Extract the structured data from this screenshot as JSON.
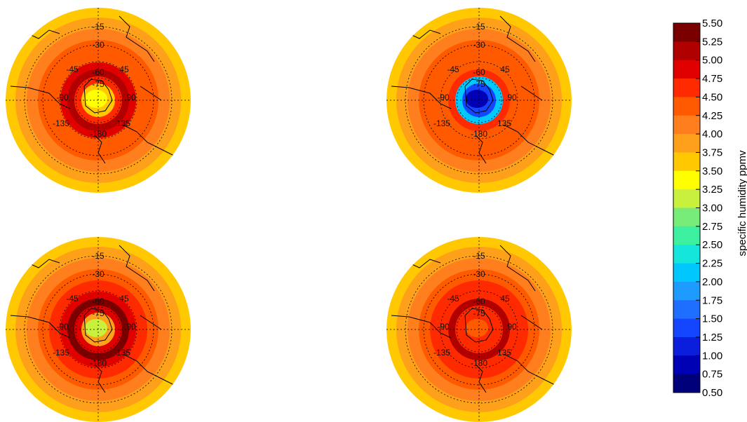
{
  "panels": [
    {
      "id": "top-left",
      "rings": [
        3.75,
        3.9,
        4.15,
        4.3,
        4.5,
        4.95,
        5.25,
        4.75,
        3.65
      ],
      "core_value": 3.3,
      "longitude_labels": [
        "-15",
        "-30",
        "-45",
        "-60",
        "-75",
        "-90",
        "-135",
        "-180",
        "45",
        "90",
        "135"
      ]
    },
    {
      "id": "top-right",
      "rings": [
        3.75,
        3.95,
        4.15,
        4.3,
        4.35,
        4.45,
        4.6,
        2.2,
        1.5
      ],
      "core_value": 0.9,
      "longitude_labels": [
        "-15",
        "-30",
        "-45",
        "-60",
        "-75",
        "-90",
        "-135",
        "-180",
        "45",
        "90",
        "135"
      ]
    },
    {
      "id": "bottom-left",
      "rings": [
        3.75,
        3.9,
        4.15,
        4.3,
        4.55,
        5.0,
        5.3,
        4.9,
        3.8
      ],
      "core_value": 3.1,
      "longitude_labels": [
        "-15",
        "-30",
        "-45",
        "-60",
        "-75",
        "-90",
        "-135",
        "-180",
        "45",
        "90",
        "135"
      ]
    },
    {
      "id": "bottom-right",
      "rings": [
        3.6,
        3.85,
        4.15,
        4.4,
        4.6,
        4.75,
        5.15,
        4.7,
        4.55
      ],
      "core_value": 4.5,
      "longitude_labels": [
        "-15",
        "-30",
        "-45",
        "-60",
        "-75",
        "-90",
        "-135",
        "-180",
        "45",
        "90",
        "135"
      ]
    }
  ],
  "colorbar": {
    "title": "specific humidity ppmv",
    "ticks": [
      "5.50",
      "5.25",
      "5.00",
      "4.75",
      "4.50",
      "4.25",
      "4.00",
      "3.75",
      "3.50",
      "3.25",
      "3.00",
      "2.75",
      "2.50",
      "2.25",
      "2.00",
      "1.75",
      "1.50",
      "1.25",
      "1.00",
      "0.75",
      "0.50"
    ],
    "colors": [
      "#7a0000",
      "#b00000",
      "#e00000",
      "#ff2a00",
      "#ff5a00",
      "#ff7f1e",
      "#ffa01a",
      "#ffc800",
      "#ffff00",
      "#c8f03c",
      "#78ec78",
      "#3cf0a0",
      "#14e6dc",
      "#00c8ff",
      "#1e9bff",
      "#1e6eff",
      "#1446ff",
      "#0a1edc",
      "#0000b4",
      "#00007a"
    ]
  }
}
